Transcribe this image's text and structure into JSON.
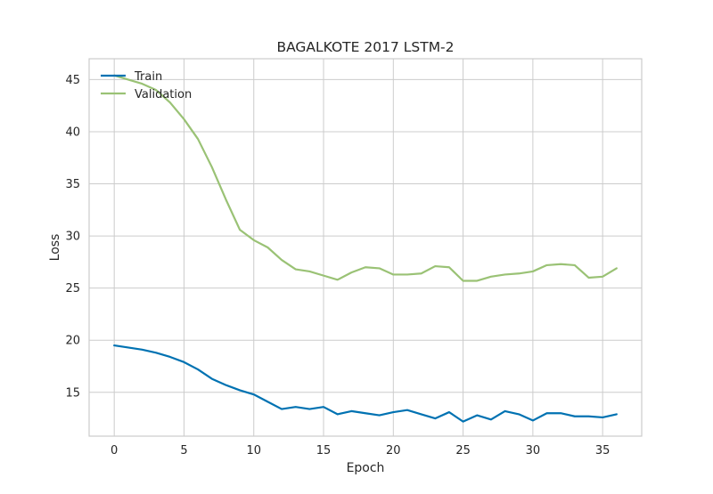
{
  "chart_data": {
    "type": "line",
    "title": "BAGALKOTE 2017 LSTM-2",
    "xlabel": "Epoch",
    "ylabel": "Loss",
    "xlim": [
      -1.8,
      37.8
    ],
    "ylim": [
      10.8,
      47.0
    ],
    "xticks": [
      0,
      5,
      10,
      15,
      20,
      25,
      30,
      35
    ],
    "yticks": [
      15,
      20,
      25,
      30,
      35,
      40,
      45
    ],
    "grid": true,
    "legend_position": "top-left",
    "x": [
      0,
      1,
      2,
      3,
      4,
      5,
      6,
      7,
      8,
      9,
      10,
      11,
      12,
      13,
      14,
      15,
      16,
      17,
      18,
      19,
      20,
      21,
      22,
      23,
      24,
      25,
      26,
      27,
      28,
      29,
      30,
      31,
      32,
      33,
      34,
      35,
      36
    ],
    "series": [
      {
        "name": "Train",
        "color": "#0072B2",
        "values": [
          19.5,
          19.3,
          19.1,
          18.8,
          18.4,
          17.9,
          17.2,
          16.3,
          15.7,
          15.2,
          14.8,
          14.1,
          13.4,
          13.6,
          13.4,
          13.6,
          12.9,
          13.2,
          13.0,
          12.8,
          13.1,
          13.3,
          12.9,
          12.5,
          13.1,
          12.2,
          12.8,
          12.4,
          13.2,
          12.9,
          12.3,
          13.0,
          13.0,
          12.7,
          12.7,
          12.6,
          12.9
        ]
      },
      {
        "name": "Validation",
        "color": "#9AC275",
        "values": [
          45.4,
          45.0,
          44.6,
          44.0,
          42.8,
          41.2,
          39.3,
          36.6,
          33.5,
          30.6,
          29.6,
          28.9,
          27.7,
          26.8,
          26.6,
          26.2,
          25.8,
          26.5,
          27.0,
          26.9,
          26.3,
          26.3,
          26.4,
          27.1,
          27.0,
          25.7,
          25.7,
          26.1,
          26.3,
          26.4,
          26.6,
          27.2,
          27.3,
          27.2,
          26.0,
          26.1,
          26.9
        ]
      }
    ]
  }
}
